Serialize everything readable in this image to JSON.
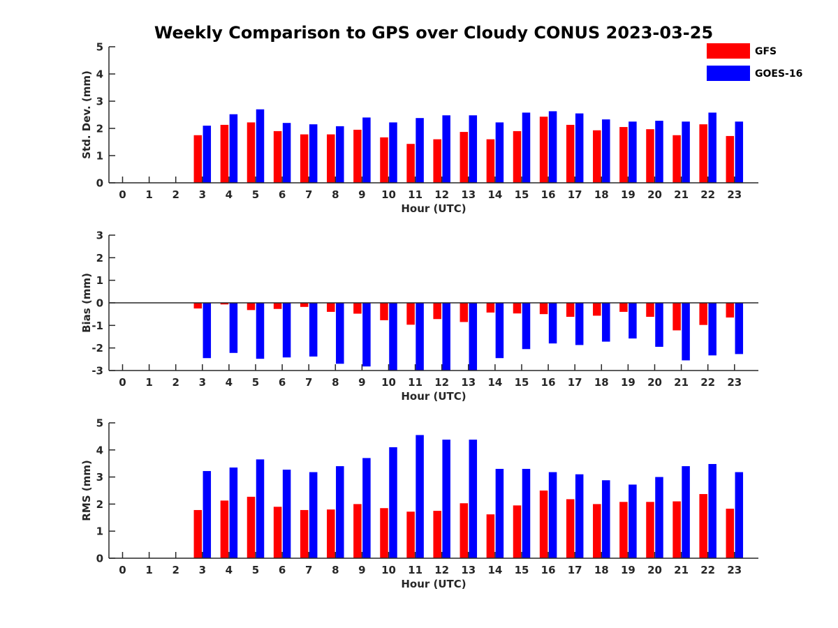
{
  "title": "Weekly Comparison to GPS over Cloudy CONUS 2023-03-25",
  "legend": [
    {
      "name": "GFS",
      "color": "#ff0000"
    },
    {
      "name": "GOES-16",
      "color": "#0000ff"
    }
  ],
  "chart_data": [
    {
      "type": "bar",
      "ylabel": "Std. Dev. (mm)",
      "xlabel": "Hour (UTC)",
      "ylim": [
        0,
        5
      ],
      "yticks": [
        0,
        1,
        2,
        3,
        4,
        5
      ],
      "categories": [
        "0",
        "1",
        "2",
        "3",
        "4",
        "5",
        "6",
        "7",
        "8",
        "9",
        "10",
        "11",
        "12",
        "13",
        "14",
        "15",
        "16",
        "17",
        "18",
        "19",
        "20",
        "21",
        "22",
        "23"
      ],
      "series": [
        {
          "name": "GFS",
          "color": "#ff0000",
          "values": [
            null,
            null,
            null,
            1.75,
            2.13,
            2.22,
            1.9,
            1.78,
            1.78,
            1.95,
            1.67,
            1.43,
            1.6,
            1.87,
            1.6,
            1.9,
            2.43,
            2.13,
            1.93,
            2.05,
            1.97,
            1.75,
            2.15,
            1.72
          ]
        },
        {
          "name": "GOES-16",
          "color": "#0000ff",
          "values": [
            null,
            null,
            null,
            2.1,
            2.52,
            2.7,
            2.2,
            2.15,
            2.08,
            2.4,
            2.22,
            2.38,
            2.48,
            2.48,
            2.22,
            2.58,
            2.63,
            2.55,
            2.33,
            2.25,
            2.28,
            2.25,
            2.58,
            2.25
          ]
        }
      ]
    },
    {
      "type": "bar",
      "ylabel": "Bias (mm)",
      "xlabel": "Hour (UTC)",
      "ylim": [
        -3,
        3
      ],
      "yticks": [
        -3,
        -2,
        -1,
        0,
        1,
        2,
        3
      ],
      "categories": [
        "0",
        "1",
        "2",
        "3",
        "4",
        "5",
        "6",
        "7",
        "8",
        "9",
        "10",
        "11",
        "12",
        "13",
        "14",
        "15",
        "16",
        "17",
        "18",
        "19",
        "20",
        "21",
        "22",
        "23"
      ],
      "series": [
        {
          "name": "GFS",
          "color": "#ff0000",
          "values": [
            null,
            null,
            null,
            -0.25,
            -0.07,
            -0.32,
            -0.27,
            -0.18,
            -0.4,
            -0.48,
            -0.77,
            -0.97,
            -0.72,
            -0.85,
            -0.43,
            -0.47,
            -0.5,
            -0.62,
            -0.57,
            -0.4,
            -0.62,
            -1.22,
            -0.98,
            -0.65
          ]
        },
        {
          "name": "GOES-16",
          "color": "#0000ff",
          "values": [
            null,
            null,
            null,
            -2.45,
            -2.22,
            -2.48,
            -2.42,
            -2.38,
            -2.7,
            -2.82,
            -3.0,
            -3.0,
            -3.0,
            -3.0,
            -2.45,
            -2.05,
            -1.8,
            -1.87,
            -1.72,
            -1.58,
            -1.95,
            -2.55,
            -2.33,
            -2.27
          ]
        }
      ]
    },
    {
      "type": "bar",
      "ylabel": "RMS (mm)",
      "xlabel": "Hour (UTC)",
      "ylim": [
        0,
        5
      ],
      "yticks": [
        0,
        1,
        2,
        3,
        4,
        5
      ],
      "categories": [
        "0",
        "1",
        "2",
        "3",
        "4",
        "5",
        "6",
        "7",
        "8",
        "9",
        "10",
        "11",
        "12",
        "13",
        "14",
        "15",
        "16",
        "17",
        "18",
        "19",
        "20",
        "21",
        "22",
        "23"
      ],
      "series": [
        {
          "name": "GFS",
          "color": "#ff0000",
          "values": [
            null,
            null,
            null,
            1.78,
            2.13,
            2.27,
            1.9,
            1.78,
            1.8,
            2.0,
            1.85,
            1.72,
            1.75,
            2.03,
            1.62,
            1.95,
            2.5,
            2.18,
            2.0,
            2.08,
            2.08,
            2.1,
            2.37,
            1.83
          ]
        },
        {
          "name": "GOES-16",
          "color": "#0000ff",
          "values": [
            null,
            null,
            null,
            3.22,
            3.35,
            3.65,
            3.27,
            3.18,
            3.4,
            3.7,
            4.1,
            4.55,
            4.38,
            4.38,
            3.3,
            3.3,
            3.18,
            3.1,
            2.88,
            2.72,
            3.0,
            3.4,
            3.48,
            3.18
          ]
        }
      ]
    }
  ]
}
